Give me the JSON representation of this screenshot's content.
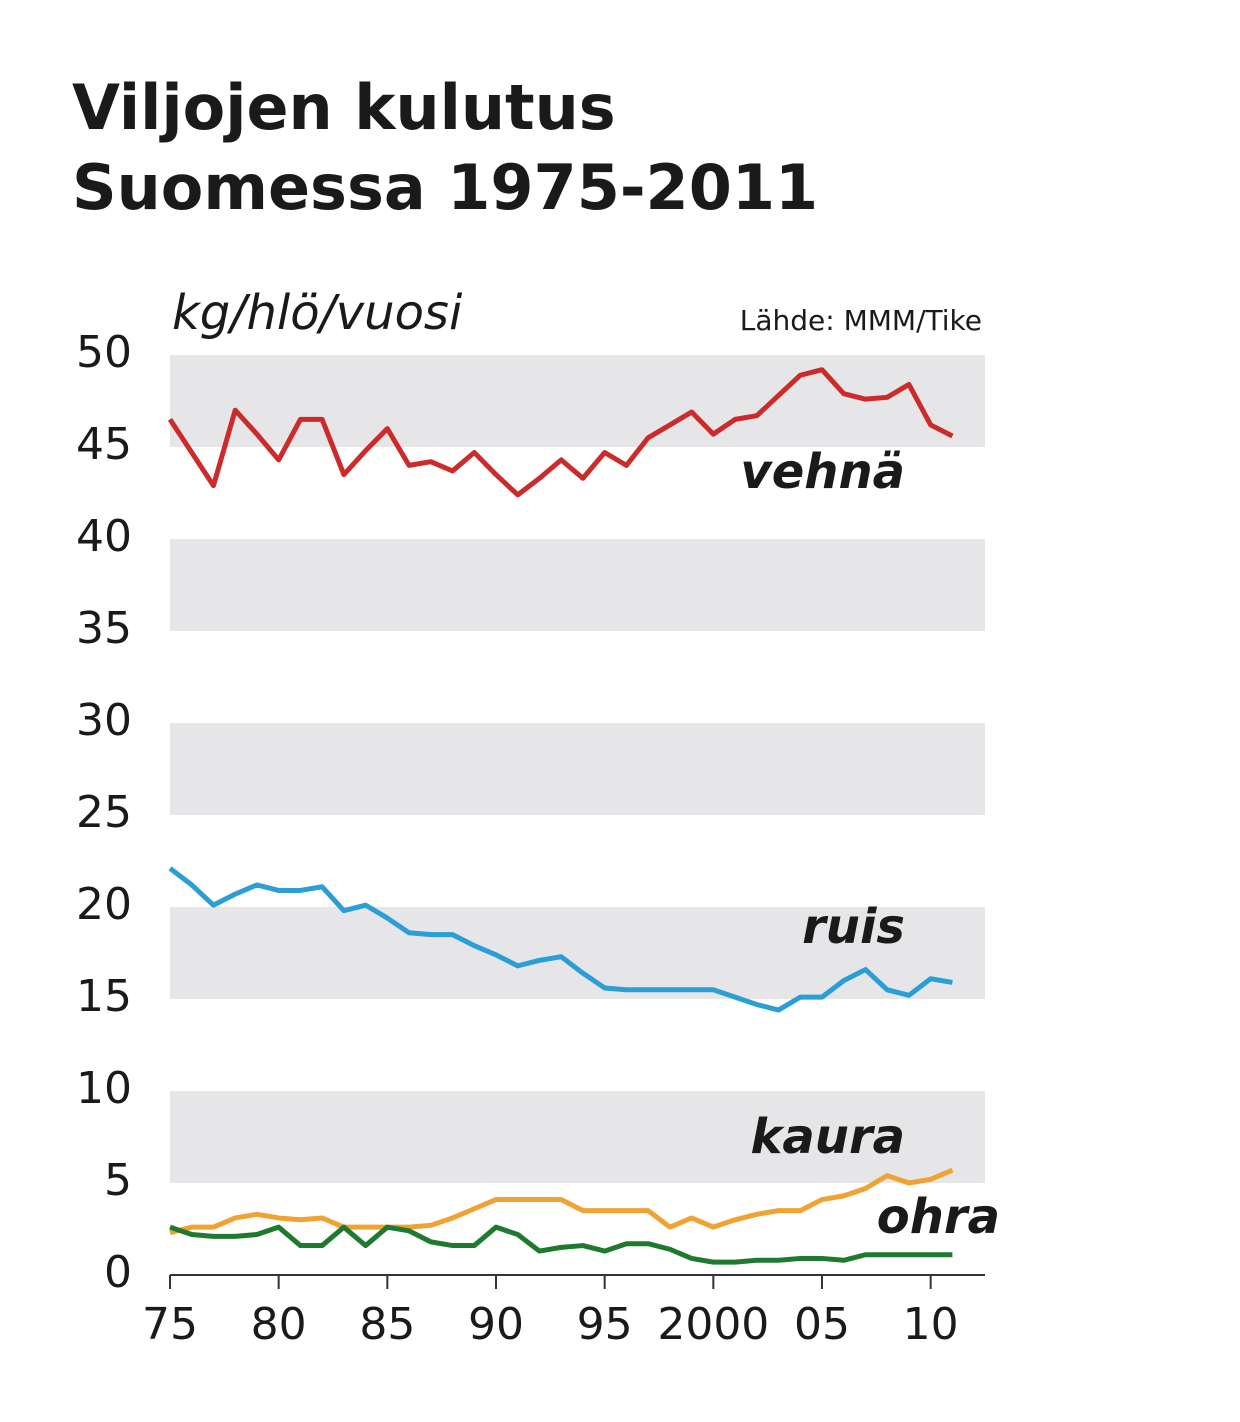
{
  "chart_data": {
    "type": "line",
    "title": [
      "Viljojen kulutus",
      "Suomessa 1975-2011"
    ],
    "y_label": "kg/hlö/vuosi",
    "source": "Lähde: MMM/Tike",
    "x": [
      1975,
      1976,
      1977,
      1978,
      1979,
      1980,
      1981,
      1982,
      1983,
      1984,
      1985,
      1986,
      1987,
      1988,
      1989,
      1990,
      1991,
      1992,
      1993,
      1994,
      1995,
      1996,
      1997,
      1998,
      1999,
      2000,
      2001,
      2002,
      2003,
      2004,
      2005,
      2006,
      2007,
      2008,
      2009,
      2010,
      2011
    ],
    "series": [
      {
        "name": "vehnä",
        "color": "#cc2b2b",
        "values": [
          46.5,
          44.7,
          42.9,
          47.0,
          45.7,
          44.3,
          46.5,
          46.5,
          43.5,
          44.8,
          46.0,
          44.0,
          44.2,
          43.7,
          44.7,
          43.5,
          42.4,
          43.3,
          44.3,
          43.3,
          44.7,
          44.0,
          45.5,
          46.2,
          46.9,
          45.7,
          46.5,
          46.7,
          47.8,
          48.9,
          49.2,
          47.9,
          47.6,
          47.7,
          48.4,
          46.2,
          45.6
        ]
      },
      {
        "name": "ruis",
        "color": "#2b9ed6",
        "values": [
          22.1,
          21.2,
          20.1,
          20.7,
          21.2,
          20.9,
          20.9,
          21.1,
          19.8,
          20.1,
          19.4,
          18.6,
          18.5,
          18.5,
          17.9,
          17.4,
          16.8,
          17.1,
          17.3,
          16.4,
          15.6,
          15.5,
          15.5,
          15.5,
          15.5,
          15.5,
          15.1,
          14.7,
          14.4,
          15.1,
          15.1,
          16.0,
          16.6,
          15.5,
          15.2,
          16.1,
          15.9
        ]
      },
      {
        "name": "kaura",
        "color": "#f0a232",
        "values": [
          2.3,
          2.6,
          2.6,
          3.1,
          3.3,
          3.1,
          3.0,
          3.1,
          2.6,
          2.6,
          2.6,
          2.6,
          2.7,
          3.1,
          3.6,
          4.1,
          4.1,
          4.1,
          4.1,
          3.5,
          3.5,
          3.5,
          3.5,
          2.6,
          3.1,
          2.6,
          3.0,
          3.3,
          3.5,
          3.5,
          4.1,
          4.3,
          4.7,
          5.4,
          5.0,
          5.2,
          5.7
        ]
      },
      {
        "name": "ohra",
        "color": "#1f7a30",
        "values": [
          2.6,
          2.2,
          2.1,
          2.1,
          2.2,
          2.6,
          1.6,
          1.6,
          2.6,
          1.6,
          2.6,
          2.4,
          1.8,
          1.6,
          1.6,
          2.6,
          2.2,
          1.3,
          1.5,
          1.6,
          1.3,
          1.7,
          1.7,
          1.4,
          0.9,
          0.7,
          0.7,
          0.8,
          0.8,
          0.9,
          0.9,
          0.8,
          1.1,
          1.1,
          1.1,
          1.1,
          1.1
        ]
      }
    ],
    "xlim": [
      1975,
      2012.5
    ],
    "xticks": [
      {
        "value": 1975,
        "label": "75"
      },
      {
        "value": 1980,
        "label": "80"
      },
      {
        "value": 1985,
        "label": "85"
      },
      {
        "value": 1990,
        "label": "90"
      },
      {
        "value": 1995,
        "label": "95"
      },
      2000,
      {
        "value": 2005,
        "label": "05"
      },
      {
        "value": 2010,
        "label": "10"
      }
    ],
    "ylim": [
      0,
      50
    ],
    "yticks": [
      0,
      5,
      10,
      15,
      20,
      25,
      30,
      35,
      40,
      45,
      50
    ],
    "band_color": "#e6e6e8"
  }
}
